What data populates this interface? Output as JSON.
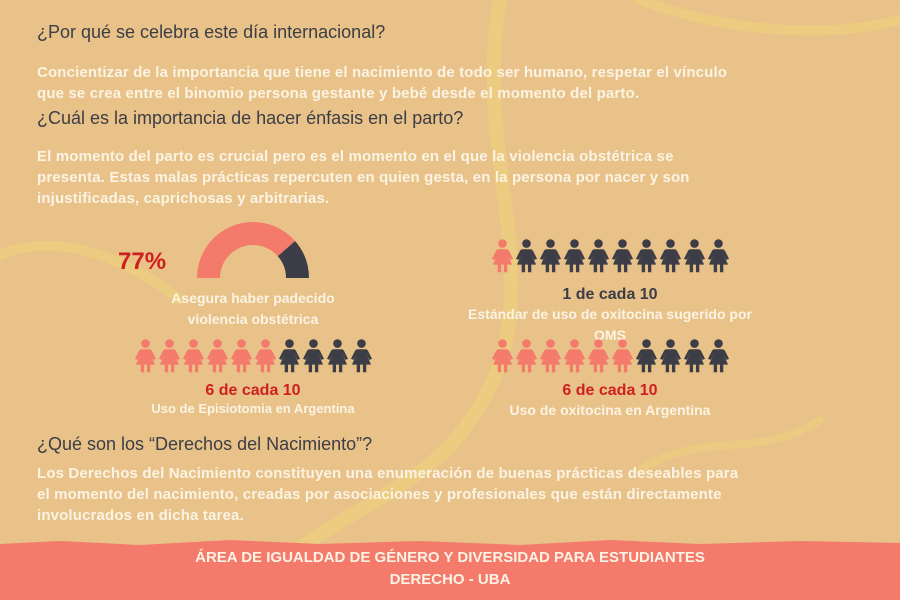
{
  "section1": {
    "question": "¿Por qué se celebra este día internacional?",
    "lines": [
      "Concientizar de la importancia que tiene el nacimiento de todo ser humano, respetar el vínculo",
      "que se crea entre el binomio persona gestante y bebé desde el momento del parto."
    ]
  },
  "section2": {
    "question": "¿Cuál es la importancia de hacer énfasis en el parto?",
    "lines": [
      "El momento del parto es crucial pero es el momento en el que la violencia obstétrica se",
      "presenta. Estas malas prácticas repercuten en quien gesta, en la persona por nacer y son",
      "injustificadas, caprichosas y arbitrarias."
    ]
  },
  "stats": {
    "gauge": {
      "percent_label": "77%",
      "fraction": 0.77,
      "caption_lines": [
        "Asegura haber padecido",
        "violencia obstétrica"
      ]
    },
    "oms": {
      "highlighted": 1,
      "total": 10,
      "count_label": "1 de cada 10",
      "caption": "Estándar de uso de oxitocina sugerido por OMS"
    },
    "episiotomia": {
      "highlighted": 6,
      "total": 10,
      "count_label": "6 de cada 10",
      "caption": "Uso de Episiotomia en Argentina"
    },
    "oxitocina": {
      "highlighted": 6,
      "total": 10,
      "count_label": "6 de cada 10",
      "caption": "Uso de oxitocina en Argentina"
    }
  },
  "section3": {
    "question": "¿Qué son los “Derechos del Nacimiento”?",
    "lines": [
      "Los Derechos del Nacimiento constituyen una enumeración de buenas prácticas deseables para",
      "el momento del nacimiento, creadas por asociaciones y profesionales que están directamente",
      "involucrados en dicha tarea."
    ]
  },
  "footer": {
    "line1": "ÁREA DE IGUALDAD DE GÉNERO Y DIVERSIDAD PARA ESTUDIANTES",
    "line2": "DERECHO - UBA"
  },
  "colors": {
    "background": "#e8c288",
    "highlight": "#f47a6c",
    "dark": "#3c3d46",
    "accent_red": "#d01f1f",
    "light_text": "#fbf3e4",
    "footer": "#f47a6c"
  }
}
